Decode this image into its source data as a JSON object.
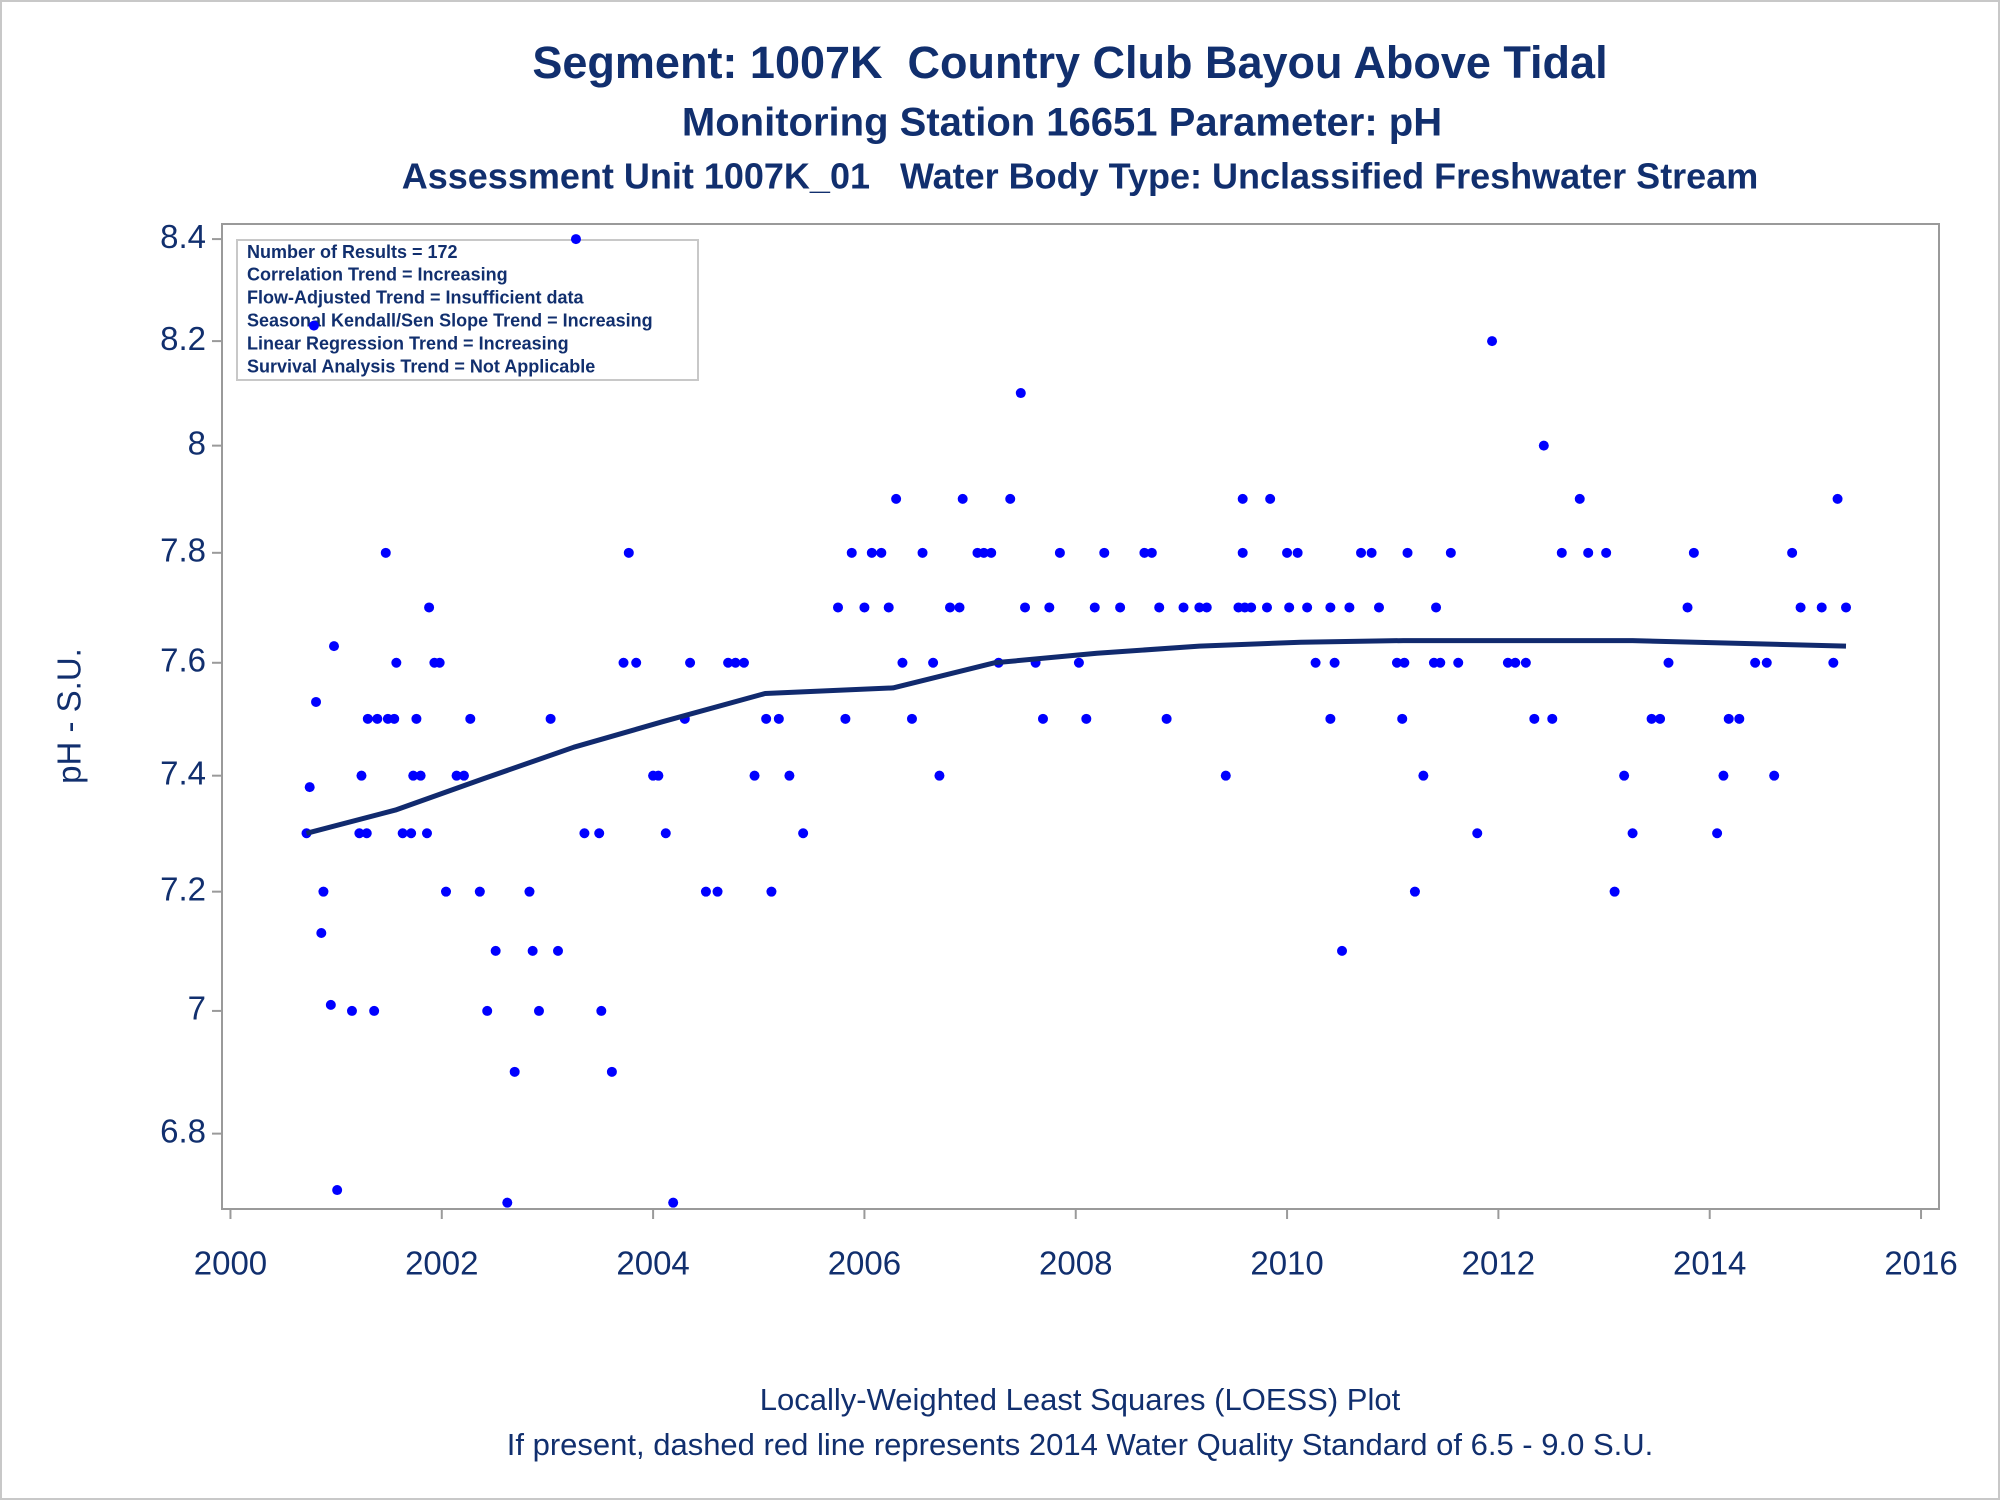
{
  "chart_data": {
    "type": "scatter",
    "title": "Segment: 1007K  Country Club Bayou Above Tidal",
    "subtitles": [
      "Monitoring Station 16651 Parameter: pH",
      "Assessment Unit 1007K_01   Water Body Type: Unclassified Freshwater Stream"
    ],
    "y_label": "pH - S.U.",
    "footnotes": [
      "Locally-Weighted Least Squares (LOESS) Plot",
      "If present, dashed red line represents 2014 Water Quality Standard of 6.5 - 9.0 S.U."
    ],
    "stats_box": [
      "Number of Results = 172",
      "Correlation Trend = Increasing",
      "Flow-Adjusted Trend = Insufficient data",
      "Seasonal Kendall/Sen Slope Trend = Increasing",
      "Linear Regression Trend = Increasing",
      "Survival Analysis Trend = Not Applicable"
    ],
    "xlim": [
      1999.92,
      2016.17
    ],
    "xticks": [
      2000,
      2002,
      2004,
      2006,
      2008,
      2010,
      2012,
      2014,
      2016
    ],
    "ylim": [
      6.68,
      8.43
    ],
    "yticks": [
      6.8,
      7,
      7.2,
      7.4,
      7.6,
      7.8,
      8,
      8.2,
      8.4
    ],
    "y_log_scale": true,
    "grid": false,
    "series": [
      {
        "type": "scatter",
        "color": "#0000ff",
        "x": [
          2000.72,
          2000.75,
          2000.79,
          2000.81,
          2000.86,
          2000.88,
          2000.95,
          2000.98,
          2001.01,
          2001.15,
          2001.22,
          2001.24,
          2001.29,
          2001.3,
          2001.36,
          2001.39,
          2001.47,
          2001.49,
          2001.55,
          2001.57,
          2001.63,
          2001.71,
          2001.73,
          2001.76,
          2001.8,
          2001.86,
          2001.88,
          2001.93,
          2001.98,
          2002.04,
          2002.14,
          2002.21,
          2002.27,
          2002.36,
          2002.43,
          2002.51,
          2002.62,
          2002.69,
          2002.83,
          2002.86,
          2002.92,
          2003.03,
          2003.1,
          2003.27,
          2003.35,
          2003.49,
          2003.51,
          2003.61,
          2003.72,
          2003.77,
          2003.84,
          2004.0,
          2004.05,
          2004.12,
          2004.19,
          2004.3,
          2004.35,
          2004.5,
          2004.61,
          2004.71,
          2004.78,
          2004.86,
          2004.96,
          2005.07,
          2005.12,
          2005.19,
          2005.29,
          2005.42,
          2005.75,
          2005.82,
          2005.88,
          2006.0,
          2006.07,
          2006.16,
          2006.23,
          2006.3,
          2006.36,
          2006.45,
          2006.55,
          2006.65,
          2006.71,
          2006.81,
          2006.9,
          2006.93,
          2007.07,
          2007.13,
          2007.2,
          2007.27,
          2007.38,
          2007.48,
          2007.52,
          2007.62,
          2007.69,
          2007.75,
          2007.85,
          2008.03,
          2008.1,
          2008.18,
          2008.27,
          2008.42,
          2008.65,
          2008.72,
          2008.79,
          2008.86,
          2009.02,
          2009.17,
          2009.24,
          2009.42,
          2009.54,
          2009.58,
          2009.58,
          2009.6,
          2009.66,
          2009.81,
          2009.84,
          2010.0,
          2010.02,
          2010.1,
          2010.19,
          2010.27,
          2010.41,
          2010.41,
          2010.45,
          2010.52,
          2010.59,
          2010.7,
          2010.8,
          2010.87,
          2011.04,
          2011.09,
          2011.11,
          2011.14,
          2011.21,
          2011.29,
          2011.39,
          2011.41,
          2011.45,
          2011.55,
          2011.62,
          2011.8,
          2011.94,
          2012.09,
          2012.16,
          2012.26,
          2012.34,
          2012.43,
          2012.51,
          2012.6,
          2012.77,
          2012.85,
          2013.02,
          2013.1,
          2013.19,
          2013.27,
          2013.45,
          2013.53,
          2013.61,
          2013.79,
          2013.85,
          2014.07,
          2014.13,
          2014.18,
          2014.28,
          2014.43,
          2014.54,
          2014.61,
          2014.78,
          2014.86,
          2015.06,
          2015.17,
          2015.21,
          2015.29
        ],
        "values": [
          7.3,
          7.38,
          8.23,
          7.53,
          7.13,
          7.2,
          7.01,
          7.63,
          6.71,
          7.0,
          7.3,
          7.4,
          7.3,
          7.5,
          7.0,
          7.5,
          7.8,
          7.5,
          7.5,
          7.6,
          7.3,
          7.3,
          7.4,
          7.5,
          7.4,
          7.3,
          7.7,
          7.6,
          7.6,
          7.2,
          7.4,
          7.4,
          7.5,
          7.2,
          7.0,
          7.1,
          6.69,
          6.9,
          7.2,
          7.1,
          7.0,
          7.5,
          7.1,
          8.4,
          7.3,
          7.3,
          7.0,
          6.9,
          7.6,
          7.8,
          7.6,
          7.4,
          7.4,
          7.3,
          6.69,
          7.5,
          7.6,
          7.2,
          7.2,
          7.6,
          7.6,
          7.6,
          7.4,
          7.5,
          7.2,
          7.5,
          7.4,
          7.3,
          7.7,
          7.5,
          7.8,
          7.7,
          7.8,
          7.8,
          7.7,
          7.9,
          7.6,
          7.5,
          7.8,
          7.6,
          7.4,
          7.7,
          7.7,
          7.9,
          7.8,
          7.8,
          7.8,
          7.6,
          7.9,
          8.1,
          7.7,
          7.6,
          7.5,
          7.7,
          7.8,
          7.6,
          7.5,
          7.7,
          7.8,
          7.7,
          7.8,
          7.8,
          7.7,
          7.5,
          7.7,
          7.7,
          7.7,
          7.4,
          7.7,
          7.9,
          7.8,
          7.7,
          7.7,
          7.7,
          7.9,
          7.8,
          7.7,
          7.8,
          7.7,
          7.6,
          7.7,
          7.5,
          7.6,
          7.1,
          7.7,
          7.8,
          7.8,
          7.7,
          7.6,
          7.5,
          7.6,
          7.8,
          7.2,
          7.4,
          7.6,
          7.7,
          7.6,
          7.8,
          7.6,
          7.3,
          8.2,
          7.6,
          7.6,
          7.6,
          7.5,
          8.0,
          7.5,
          7.8,
          7.9,
          7.8,
          7.8,
          7.2,
          7.4,
          7.3,
          7.5,
          7.5,
          7.6,
          7.7,
          7.8,
          7.3,
          7.4,
          7.5,
          7.5,
          7.6,
          7.6,
          7.4,
          7.8,
          7.7,
          7.7,
          7.6,
          7.9,
          7.7
        ]
      },
      {
        "type": "line",
        "color": "#112a6e",
        "x": [
          2000.72,
          2001.56,
          2002.4,
          2003.25,
          2004.09,
          2005.06,
          2006.27,
          2007.23,
          2008.2,
          2009.17,
          2010.13,
          2011.1,
          2012.31,
          2013.27,
          2014.24,
          2015.29
        ],
        "values": [
          7.3,
          7.34,
          7.395,
          7.45,
          7.495,
          7.545,
          7.555,
          7.6,
          7.617,
          7.63,
          7.637,
          7.64,
          7.64,
          7.64,
          7.635,
          7.63
        ]
      }
    ]
  }
}
